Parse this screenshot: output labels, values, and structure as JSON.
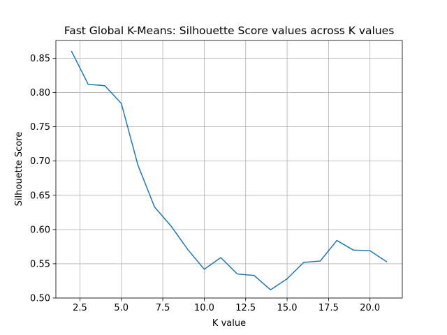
{
  "chart_data": {
    "type": "line",
    "title": "Fast Global K-Means: Silhouette Score values across K values",
    "xlabel": "K value",
    "ylabel": "Silhouette Score",
    "xlim": [
      1.05,
      21.95
    ],
    "ylim": [
      0.5,
      0.876
    ],
    "xticks": [
      2.5,
      5.0,
      7.5,
      10.0,
      12.5,
      15.0,
      17.5,
      20.0
    ],
    "xtick_labels": [
      "2.5",
      "5.0",
      "7.5",
      "10.0",
      "12.5",
      "15.0",
      "17.5",
      "20.0"
    ],
    "yticks": [
      0.5,
      0.55,
      0.6,
      0.65,
      0.7,
      0.75,
      0.8,
      0.85
    ],
    "ytick_labels": [
      "0.50",
      "0.55",
      "0.60",
      "0.65",
      "0.70",
      "0.75",
      "0.80",
      "0.85"
    ],
    "grid": true,
    "x": [
      2,
      3,
      4,
      5,
      6,
      7,
      8,
      9,
      10,
      11,
      12,
      13,
      14,
      15,
      16,
      17,
      18,
      19,
      20,
      21
    ],
    "series": [
      {
        "values": [
          0.86,
          0.812,
          0.81,
          0.784,
          0.694,
          0.633,
          0.605,
          0.571,
          0.542,
          0.559,
          0.535,
          0.533,
          0.512,
          0.528,
          0.552,
          0.554,
          0.584,
          0.57,
          0.569,
          0.553
        ],
        "color": "#1f77b4"
      }
    ],
    "grid_color": "#b0b0b0",
    "axes_color": "#000000"
  }
}
